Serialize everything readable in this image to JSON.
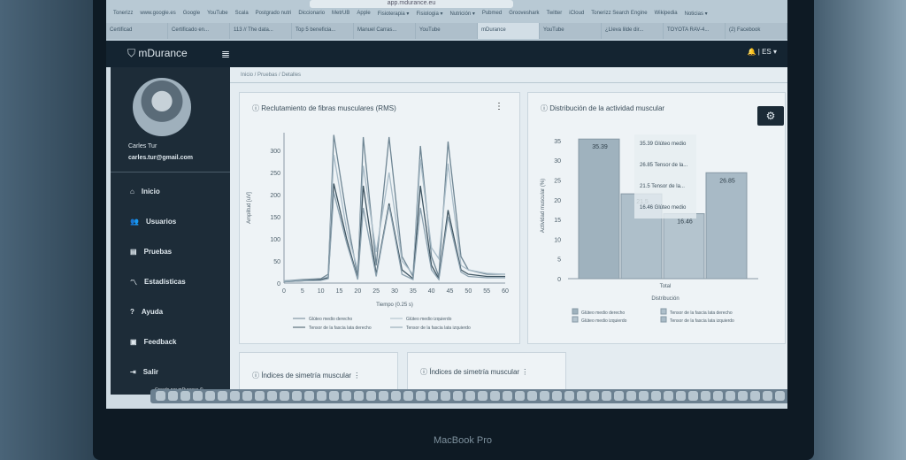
{
  "browser": {
    "url": "app.mdurance.eu",
    "bookmarks": [
      "Tonerizz",
      "www.google.es",
      "Google",
      "YouTube",
      "Scala",
      "Postgrado nutri",
      "Diccionario",
      "MetrUB",
      "Apple",
      "Fisioterapia ▾",
      "Fisiologia ▾",
      "Nutrición ▾",
      "Pubmed",
      "Grooveshark",
      "Twitter",
      "iCloud",
      "Tonerizz Search Engine",
      "Wikipedia",
      "Noticias ▾"
    ],
    "tabs": [
      "Certificad",
      "Certificado en...",
      "113 // The data...",
      "Top 5 beneficia...",
      "Manuel Carras...",
      "YouTube",
      "mDurance",
      "YouTube",
      "¿Lleva lilde dir...",
      "TOYOTA RAV-4...",
      "(2) Facebook"
    ],
    "active_tab": 6
  },
  "app": {
    "logo": "mDurance",
    "language": "ES ▾",
    "menu_icon": "hamburger-icon"
  },
  "user": {
    "name": "Carles Tur",
    "email": "carles.tur@gmail.com"
  },
  "sidebar": {
    "items": [
      {
        "label": "Inicio",
        "icon": "⌂"
      },
      {
        "label": "Usuarios",
        "icon": "👥"
      },
      {
        "label": "Pruebas",
        "icon": "▤"
      },
      {
        "label": "Estadísticas",
        "icon": "〽"
      },
      {
        "label": "Ayuda",
        "icon": "?"
      },
      {
        "label": "Feedback",
        "icon": "▣"
      },
      {
        "label": "Salir",
        "icon": "⇥"
      }
    ],
    "footer": "Creado por mDurance ©"
  },
  "breadcrumb": "Inicio / Pruebas / Detalles",
  "cards": {
    "symmetry1": "Índices de simetría muscular",
    "symmetry2": "Índices de simetría muscular"
  },
  "colors": {
    "sidebar": "#1d2c38",
    "appbar": "#142431"
  },
  "laptop_label": "MacBook Pro",
  "chart_data": [
    {
      "type": "line",
      "title": "Reclutamiento de fibras musculares (RMS)",
      "xlabel": "Tiempo (0.25 s)",
      "ylabel": "Amplitud [uV]",
      "xlim": [
        0,
        60
      ],
      "ylim": [
        0,
        340
      ],
      "xticks": [
        0,
        5,
        10,
        15,
        20,
        25,
        30,
        35,
        40,
        45,
        50,
        55,
        60
      ],
      "yticks": [
        0,
        50,
        100,
        150,
        200,
        250,
        300
      ],
      "legend": "bottom",
      "x": [
        0,
        5,
        10,
        12,
        13.5,
        17,
        20,
        21.5,
        25,
        28.5,
        32,
        35,
        37,
        40,
        42,
        44.5,
        48,
        50,
        55,
        60
      ],
      "series": [
        {
          "name": "Glúteo medio derecho",
          "values": [
            5,
            8,
            10,
            20,
            335,
            150,
            15,
            330,
            40,
            330,
            60,
            15,
            310,
            60,
            15,
            320,
            60,
            30,
            20,
            20
          ]
        },
        {
          "name": "Glúteo medio izquierdo",
          "values": [
            5,
            6,
            8,
            15,
            290,
            120,
            30,
            265,
            70,
            250,
            50,
            20,
            280,
            80,
            55,
            270,
            40,
            30,
            22,
            20
          ]
        },
        {
          "name": "Tensor de la fascia lata derecho",
          "values": [
            3,
            5,
            8,
            12,
            225,
            100,
            10,
            220,
            20,
            180,
            30,
            10,
            220,
            40,
            10,
            165,
            30,
            20,
            15,
            15
          ]
        },
        {
          "name": "Tensor de la fascia lata izquierdo",
          "values": [
            3,
            5,
            6,
            10,
            205,
            90,
            8,
            170,
            15,
            175,
            20,
            8,
            170,
            30,
            8,
            150,
            25,
            15,
            12,
            12
          ]
        }
      ]
    },
    {
      "type": "bar",
      "title": "Distribución de la actividad muscular",
      "xlabel": "Distribución",
      "ylabel": "Actividad muscular (%)",
      "ylim": [
        0,
        37
      ],
      "yticks": [
        0,
        5,
        10,
        15,
        20,
        25,
        30,
        35
      ],
      "categories": [
        "Total"
      ],
      "legend": "bottom",
      "series": [
        {
          "name": "Glúteo medio derecho",
          "values": [
            35.39
          ]
        },
        {
          "name": "Tensor de la fascia lata derecho",
          "values": [
            21.5
          ]
        },
        {
          "name": "Glúteo medio izquierdo",
          "values": [
            16.46
          ]
        },
        {
          "name": "Tensor de la fascia lata izquierdo",
          "values": [
            26.85
          ]
        }
      ],
      "tooltip": [
        "35.39 Glúteo medio",
        "26.85 Tensor de la...",
        "21.5 Tensor de la...",
        "16.46 Glúteo medio"
      ]
    }
  ]
}
